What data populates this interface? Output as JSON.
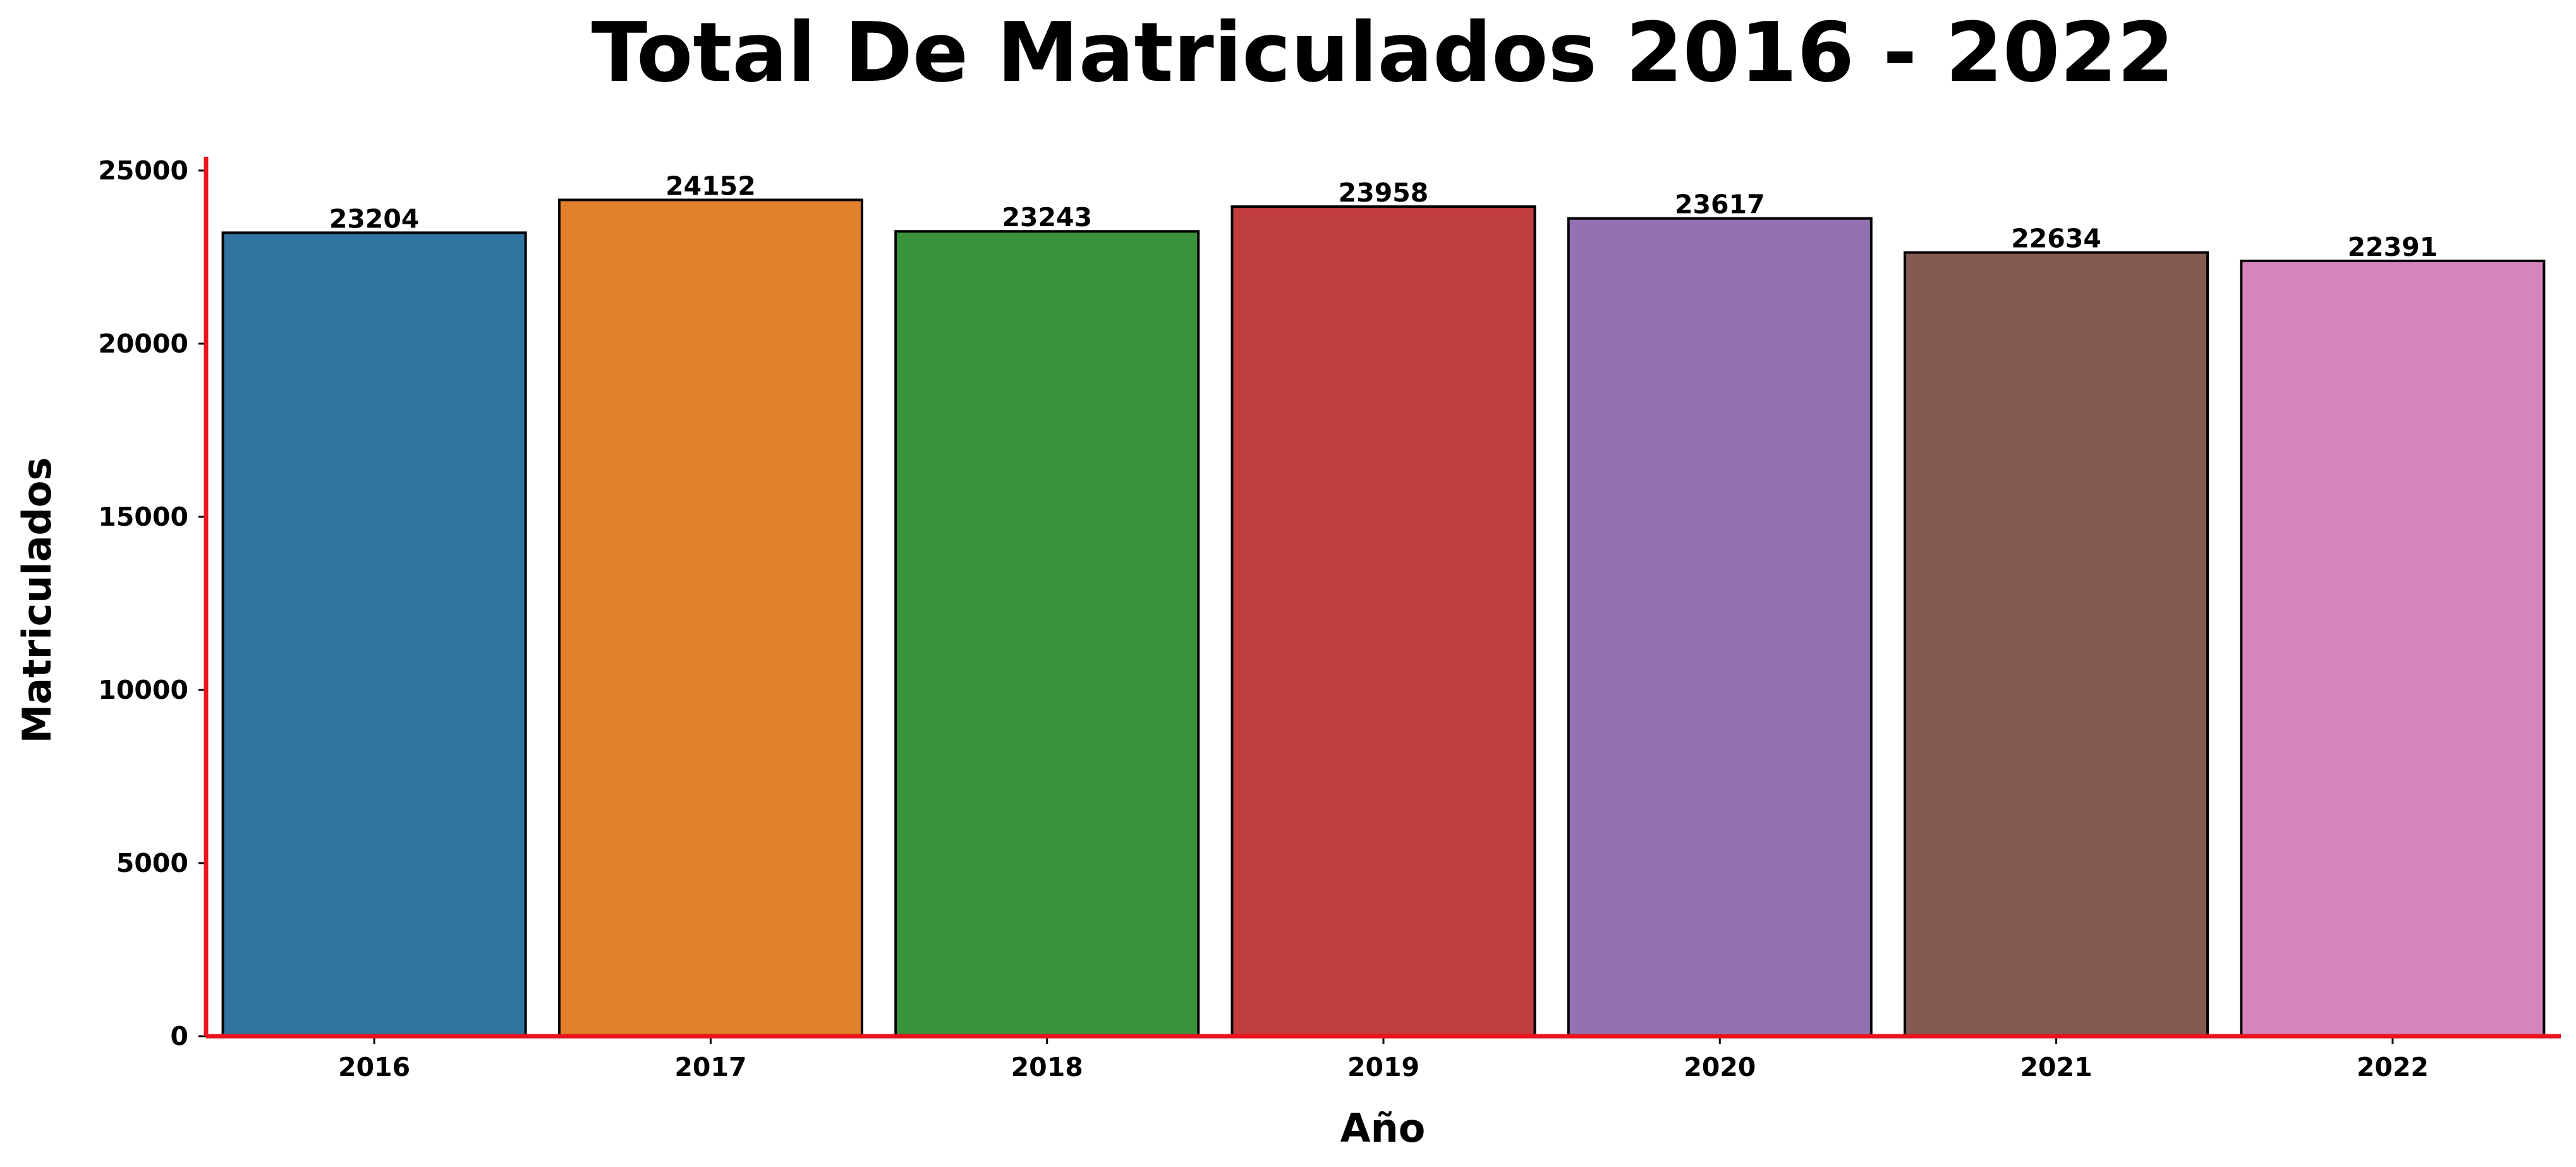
{
  "chart_data": {
    "type": "bar",
    "title": "Total De Matriculados 2016 - 2022",
    "xlabel": "Año",
    "ylabel": "Matriculados",
    "categories": [
      "2016",
      "2017",
      "2018",
      "2019",
      "2020",
      "2021",
      "2022"
    ],
    "values": [
      23204,
      24152,
      23243,
      23958,
      23617,
      22634,
      22391
    ],
    "data_labels": [
      "23204",
      "24152",
      "23243",
      "23958",
      "23617",
      "22634",
      "22391"
    ],
    "colors": [
      "#3274a1",
      "#e1812c",
      "#3a923a",
      "#c03d3e",
      "#9372b2",
      "#845b53",
      "#d684bd"
    ],
    "bar_edge_color": "#000000",
    "axis_color": "#e8141e",
    "ylim": [
      0,
      25400
    ],
    "yticks": [
      0,
      5000,
      10000,
      15000,
      20000,
      25000
    ],
    "ytick_labels": [
      "0",
      "5000",
      "10000",
      "15000",
      "20000",
      "25000"
    ],
    "grid": false,
    "legend": false
  }
}
